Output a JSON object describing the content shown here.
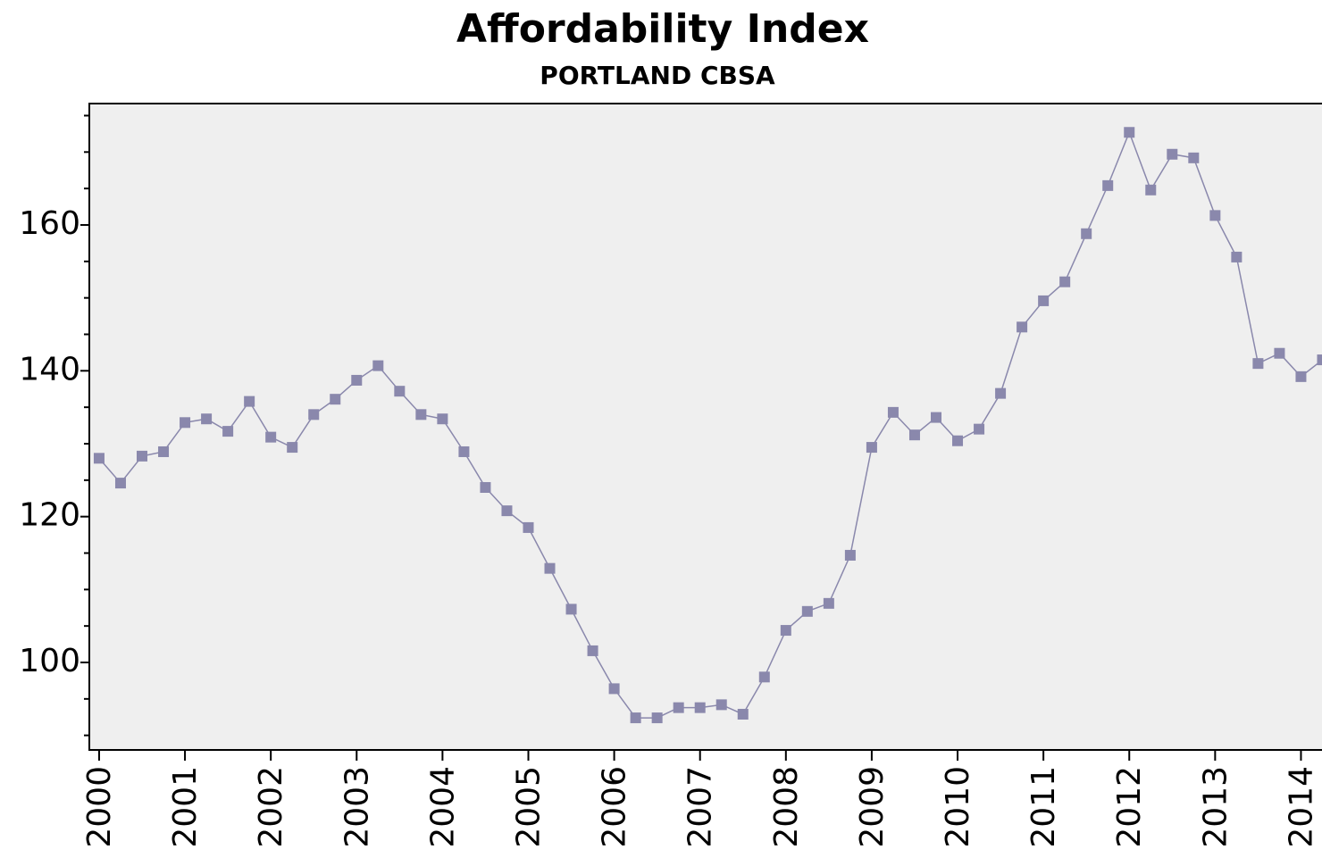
{
  "chart_data": {
    "type": "line",
    "title": "Affordability Index",
    "subtitle": "PORTLAND CBSA",
    "x": [
      2000,
      2000.25,
      2000.5,
      2000.75,
      2001,
      2001.25,
      2001.5,
      2001.75,
      2002,
      2002.25,
      2002.5,
      2002.75,
      2003,
      2003.25,
      2003.5,
      2003.75,
      2004,
      2004.25,
      2004.5,
      2004.75,
      2005,
      2005.25,
      2005.5,
      2005.75,
      2006,
      2006.25,
      2006.5,
      2006.75,
      2007,
      2007.25,
      2007.5,
      2007.75,
      2008,
      2008.25,
      2008.5,
      2008.75,
      2009,
      2009.25,
      2009.5,
      2009.75,
      2010,
      2010.25,
      2010.5,
      2010.75,
      2011,
      2011.25,
      2011.5,
      2011.75,
      2012,
      2012.25,
      2012.5,
      2012.75,
      2013,
      2013.25,
      2013.5,
      2013.75,
      2014,
      2014.25
    ],
    "series": [
      {
        "name": "Affordability Index",
        "color": "#8a88ac",
        "values": [
          128.0,
          124.6,
          128.3,
          128.9,
          132.9,
          133.4,
          131.7,
          135.8,
          130.9,
          129.5,
          134.0,
          136.1,
          138.7,
          140.7,
          137.2,
          134.0,
          133.4,
          128.9,
          124.0,
          120.8,
          118.5,
          112.9,
          107.3,
          101.6,
          96.4,
          92.4,
          92.4,
          93.8,
          93.8,
          94.2,
          92.9,
          98.0,
          104.4,
          107.0,
          108.1,
          114.7,
          129.5,
          134.3,
          131.2,
          133.6,
          130.4,
          132.0,
          136.9,
          146.0,
          149.6,
          152.2,
          158.8,
          165.4,
          172.7,
          164.8,
          169.7,
          169.2,
          161.3,
          155.6,
          141.0,
          142.4,
          139.2,
          141.5
        ]
      }
    ],
    "xlim": [
      1999.886,
      2014.245
    ],
    "xticks": [
      2000,
      2001,
      2002,
      2003,
      2004,
      2005,
      2006,
      2007,
      2008,
      2009,
      2010,
      2011,
      2012,
      2013,
      2014
    ],
    "ylim": [
      88,
      176.65
    ],
    "yticks": [
      100,
      120,
      140,
      160
    ],
    "yminorticks": [
      90,
      95,
      105,
      110,
      115,
      125,
      130,
      135,
      145,
      150,
      155,
      165,
      170,
      175
    ],
    "plot_background": "#efefef"
  }
}
